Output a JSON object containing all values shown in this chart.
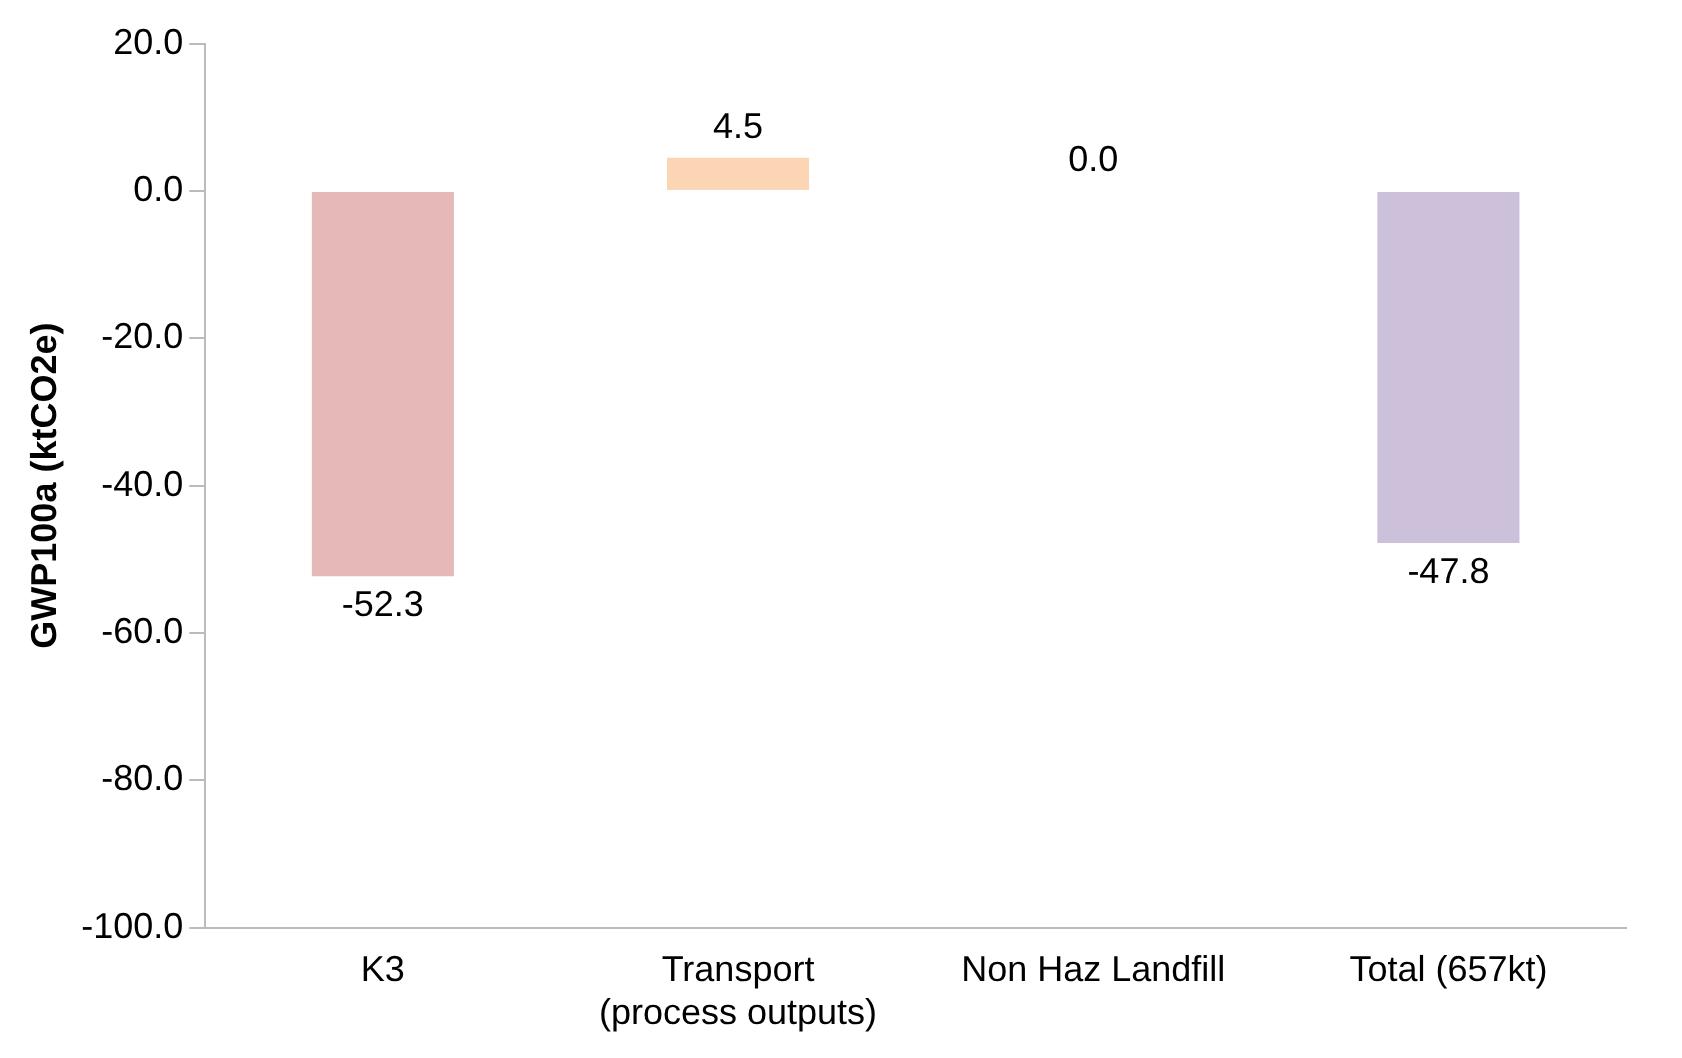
{
  "chart_data": {
    "type": "bar",
    "ylabel": "GWP100a (ktCO2e)",
    "categories": [
      "K3",
      "Transport (process outputs)",
      "Non Haz Landfill",
      "Total (657kt)"
    ],
    "values": [
      -52.3,
      4.5,
      0.0,
      -47.8
    ],
    "colors": [
      "#e6b8b7",
      "#fcd5b4",
      "#d8e4bc",
      "#ccc0da"
    ],
    "value_labels": [
      "-52.3",
      "4.5",
      "0.0",
      "-47.8"
    ],
    "ylim": [
      -100,
      20
    ],
    "yticks": [
      {
        "value": -100,
        "label": "-100.0"
      },
      {
        "value": -80,
        "label": "-80.0"
      },
      {
        "value": -60,
        "label": "-60.0"
      },
      {
        "value": -40,
        "label": "-40.0"
      },
      {
        "value": -20,
        "label": "-20.0"
      },
      {
        "value": 0,
        "label": "0.0"
      },
      {
        "value": 20,
        "label": "20.0"
      }
    ],
    "grid": false,
    "legend": false
  }
}
